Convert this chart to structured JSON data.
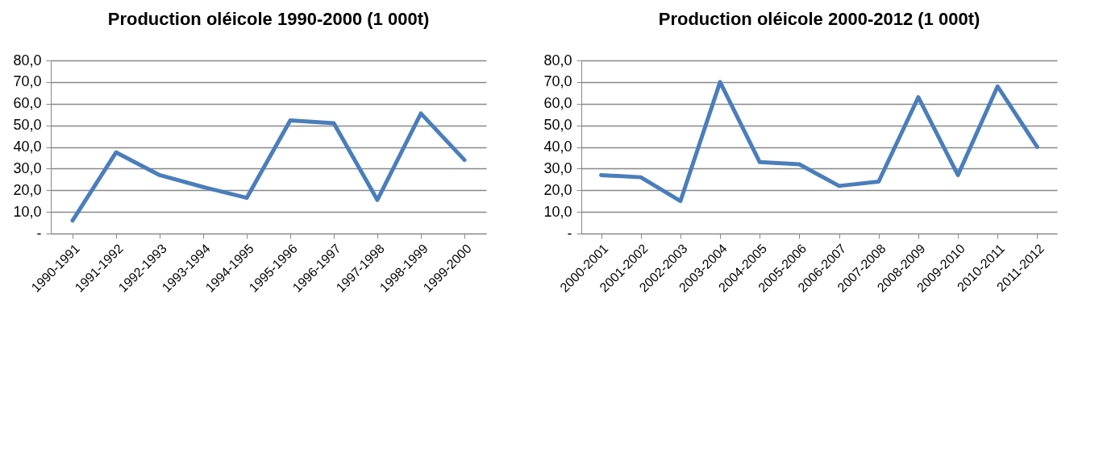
{
  "chart_data": [
    {
      "type": "line",
      "title": "Production oléicole 1990-2000 (1 000t)",
      "categories": [
        "1990-1991",
        "1991-1992",
        "1992-1993",
        "1993-1994",
        "1994-1995",
        "1995-1996",
        "1996-1997",
        "1997-1998",
        "1998-1999",
        "1999-2000"
      ],
      "series": [
        {
          "color": "#4a7ebb",
          "values": [
            6,
            37.5,
            27,
            21.5,
            16.5,
            52.3,
            51,
            15.5,
            55.5,
            34
          ]
        }
      ],
      "ylim": [
        0,
        80
      ],
      "yticks": [
        {
          "value": 0,
          "label": "-"
        },
        {
          "value": 10,
          "label": "10,0"
        },
        {
          "value": 20,
          "label": "20,0"
        },
        {
          "value": 30,
          "label": "30,0"
        },
        {
          "value": 40,
          "label": "40,0"
        },
        {
          "value": 50,
          "label": "50,0"
        },
        {
          "value": 60,
          "label": "60,0"
        },
        {
          "value": 70,
          "label": "70,0"
        },
        {
          "value": 80,
          "label": "80,0"
        }
      ],
      "grid": "y",
      "legend": false,
      "marker": "none",
      "line_style": "solid"
    },
    {
      "type": "line",
      "title": "Production oléicole 2000-2012 (1 000t)",
      "categories": [
        "2000-2001",
        "2001-2002",
        "2002-2003",
        "2003-2004",
        "2004-2005",
        "2005-2006",
        "2006-2007",
        "2007-2008",
        "2008-2009",
        "2009-2010",
        "2010-2011",
        "2011-2012"
      ],
      "series": [
        {
          "color": "#4a7ebb",
          "values": [
            27,
            26,
            15,
            70,
            33,
            32,
            22,
            24,
            63,
            27,
            68,
            40
          ]
        }
      ],
      "ylim": [
        0,
        80
      ],
      "yticks": [
        {
          "value": 0,
          "label": "-"
        },
        {
          "value": 10,
          "label": "10,0"
        },
        {
          "value": 20,
          "label": "20,0"
        },
        {
          "value": 30,
          "label": "30,0"
        },
        {
          "value": 40,
          "label": "40,0"
        },
        {
          "value": 50,
          "label": "50,0"
        },
        {
          "value": 60,
          "label": "60,0"
        },
        {
          "value": 70,
          "label": "70,0"
        },
        {
          "value": 80,
          "label": "80,0"
        }
      ],
      "grid": "y",
      "legend": false,
      "marker": "none",
      "line_style": "solid"
    }
  ]
}
